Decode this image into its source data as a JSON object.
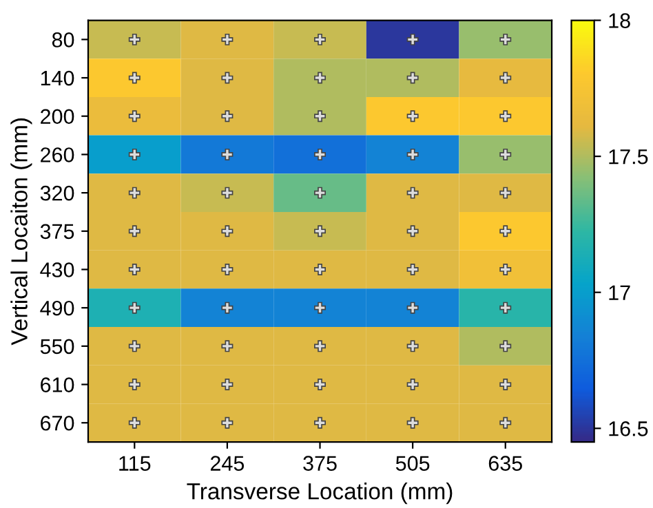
{
  "chart_data": {
    "type": "heatmap",
    "xlabel": "Transverse Location (mm)",
    "ylabel": "Vertical Locaiton (mm)",
    "categories": [
      "115",
      "245",
      "375",
      "505",
      "635"
    ],
    "y_categories": [
      "80",
      "140",
      "200",
      "260",
      "320",
      "375",
      "430",
      "490",
      "550",
      "610",
      "670"
    ],
    "cells": [
      [
        17.55,
        17.6,
        17.55,
        16.5,
        17.45
      ],
      [
        17.8,
        17.6,
        17.5,
        17.5,
        17.62
      ],
      [
        17.65,
        17.6,
        17.5,
        17.8,
        17.8
      ],
      [
        17.0,
        16.8,
        16.75,
        16.85,
        17.45
      ],
      [
        17.6,
        17.55,
        17.35,
        17.6,
        17.6
      ],
      [
        17.6,
        17.6,
        17.55,
        17.6,
        17.8
      ],
      [
        17.6,
        17.6,
        17.6,
        17.6,
        17.7
      ],
      [
        17.15,
        16.85,
        16.85,
        16.85,
        17.2
      ],
      [
        17.6,
        17.6,
        17.6,
        17.6,
        17.5
      ],
      [
        17.6,
        17.6,
        17.6,
        17.6,
        17.6
      ],
      [
        17.6,
        17.6,
        17.6,
        17.6,
        17.6
      ]
    ],
    "clim": [
      16.45,
      18
    ],
    "cticks": [
      16.5,
      17,
      17.5,
      18
    ],
    "marker": "cross"
  }
}
